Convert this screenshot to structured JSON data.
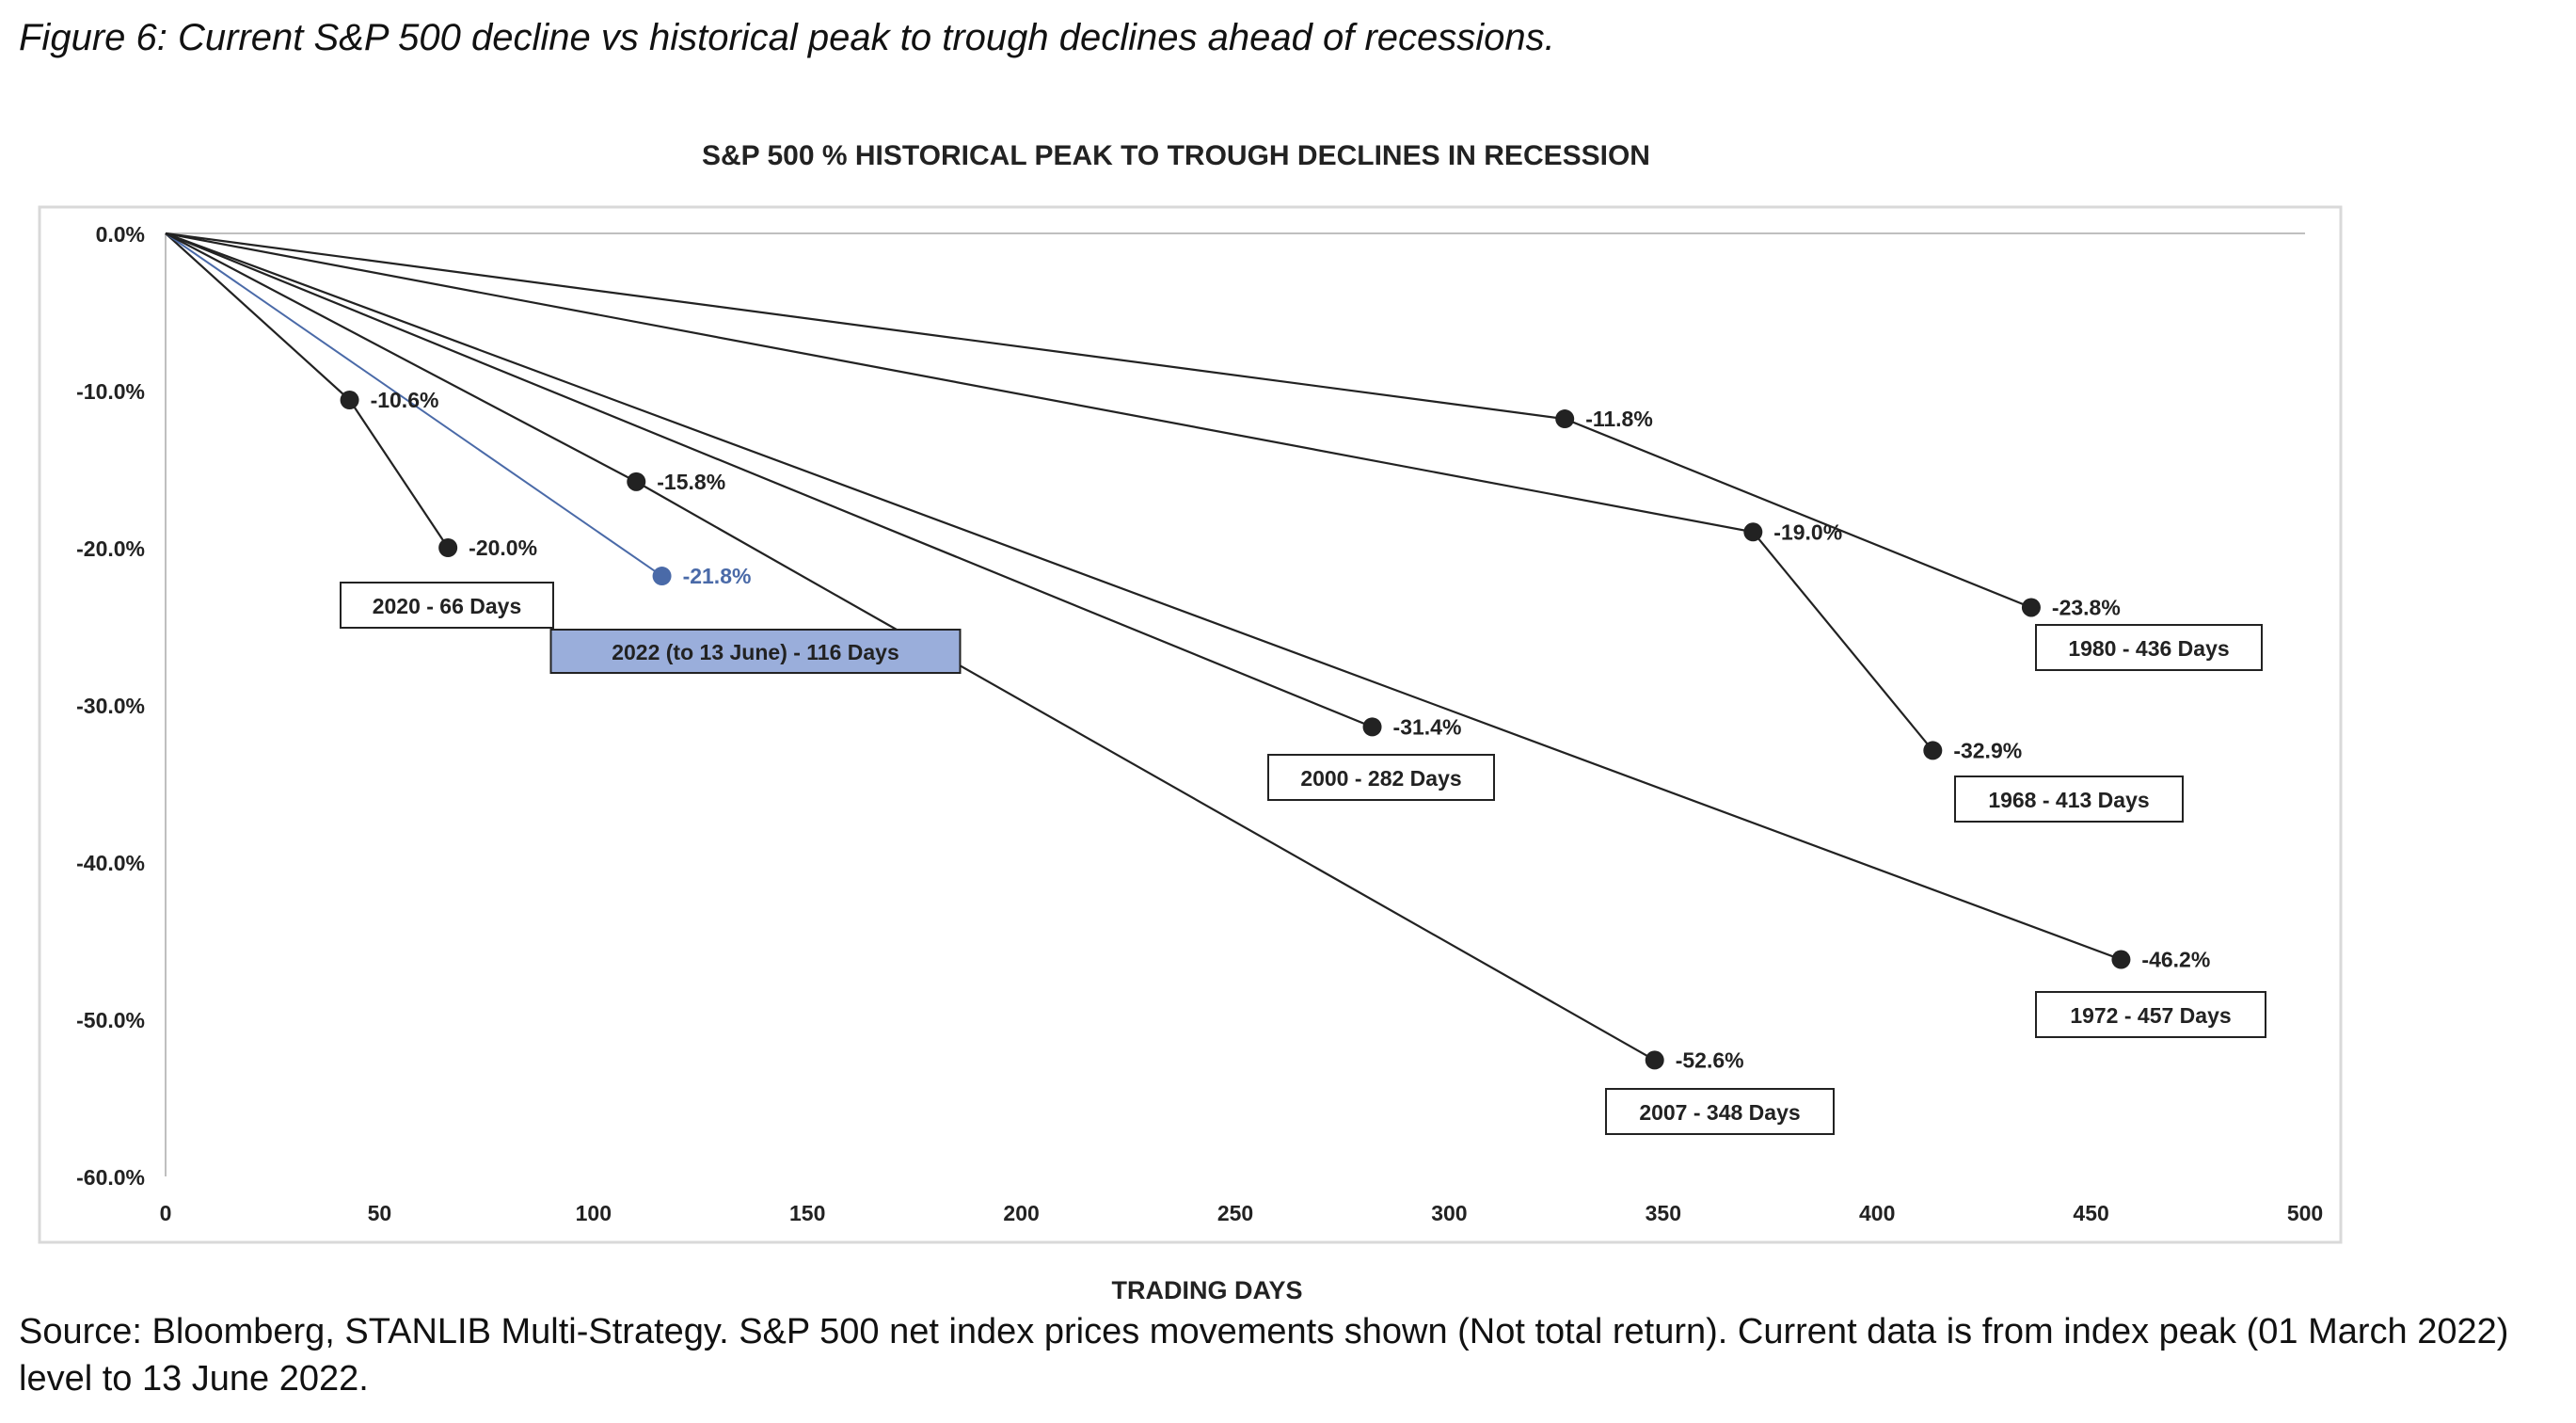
{
  "figure_title": "Figure 6: Current S&P 500 decline vs historical peak to trough declines ahead of recessions.",
  "source_note": "Source: Bloomberg, STANLIB Multi-Strategy. S&P 500 net index prices movements shown (Not total return). Current data is from index peak (01 March 2022) level to 13 June 2022.",
  "chart_data": {
    "type": "line",
    "title": "S&P 500 % HISTORICAL PEAK TO TROUGH DECLINES IN RECESSION",
    "xlabel": "TRADING DAYS",
    "ylabel": "",
    "xlim": [
      0,
      500
    ],
    "ylim": [
      -60,
      0
    ],
    "xticks": [
      0,
      50,
      100,
      150,
      200,
      250,
      300,
      350,
      400,
      450,
      500
    ],
    "yticks": [
      0,
      -10,
      -20,
      -30,
      -40,
      -50,
      -60
    ],
    "ytick_labels": [
      "0.0%",
      "-10.0%",
      "-20.0%",
      "-30.0%",
      "-40.0%",
      "-50.0%",
      "-60.0%"
    ],
    "grid": false,
    "colors": {
      "series": "#222222",
      "current": "#4a6aa8",
      "current_box": "#9aaedb"
    },
    "series": [
      {
        "id": "s2020",
        "label_text": "2020  - 66 Days",
        "current": false,
        "points": [
          {
            "x": 0,
            "y": 0
          },
          {
            "x": 43,
            "y": -10.6,
            "label": "-10.6%"
          },
          {
            "x": 66,
            "y": -20.0,
            "label": "-20.0%"
          }
        ]
      },
      {
        "id": "s2022",
        "label_text": "2022 (to 13 June)  - 116 Days",
        "current": true,
        "points": [
          {
            "x": 0,
            "y": 0
          },
          {
            "x": 116,
            "y": -21.8,
            "label": "-21.8%"
          }
        ]
      },
      {
        "id": "s2007",
        "label_text": "2007 - 348 Days",
        "current": false,
        "points": [
          {
            "x": 0,
            "y": 0
          },
          {
            "x": 110,
            "y": -15.8,
            "label": "-15.8%"
          },
          {
            "x": 348,
            "y": -52.6,
            "label": "-52.6%"
          }
        ]
      },
      {
        "id": "s2000",
        "label_text": "2000 - 282 Days",
        "current": false,
        "points": [
          {
            "x": 0,
            "y": 0
          },
          {
            "x": 282,
            "y": -31.4,
            "label": "-31.4%"
          }
        ]
      },
      {
        "id": "s1980",
        "label_text": "1980 - 436 Days",
        "current": false,
        "points": [
          {
            "x": 0,
            "y": 0
          },
          {
            "x": 327,
            "y": -11.8,
            "label": "-11.8%"
          },
          {
            "x": 436,
            "y": -23.8,
            "label": "-23.8%"
          }
        ]
      },
      {
        "id": "s1968",
        "label_text": "1968 - 413 Days",
        "current": false,
        "points": [
          {
            "x": 0,
            "y": 0
          },
          {
            "x": 371,
            "y": -19.0,
            "label": "-19.0%"
          },
          {
            "x": 413,
            "y": -32.9,
            "label": "-32.9%"
          }
        ]
      },
      {
        "id": "s1972",
        "label_text": "1972 - 457 Days",
        "current": false,
        "points": [
          {
            "x": 0,
            "y": 0
          },
          {
            "x": 457,
            "y": -46.2,
            "label": "-46.2%"
          }
        ]
      }
    ]
  }
}
